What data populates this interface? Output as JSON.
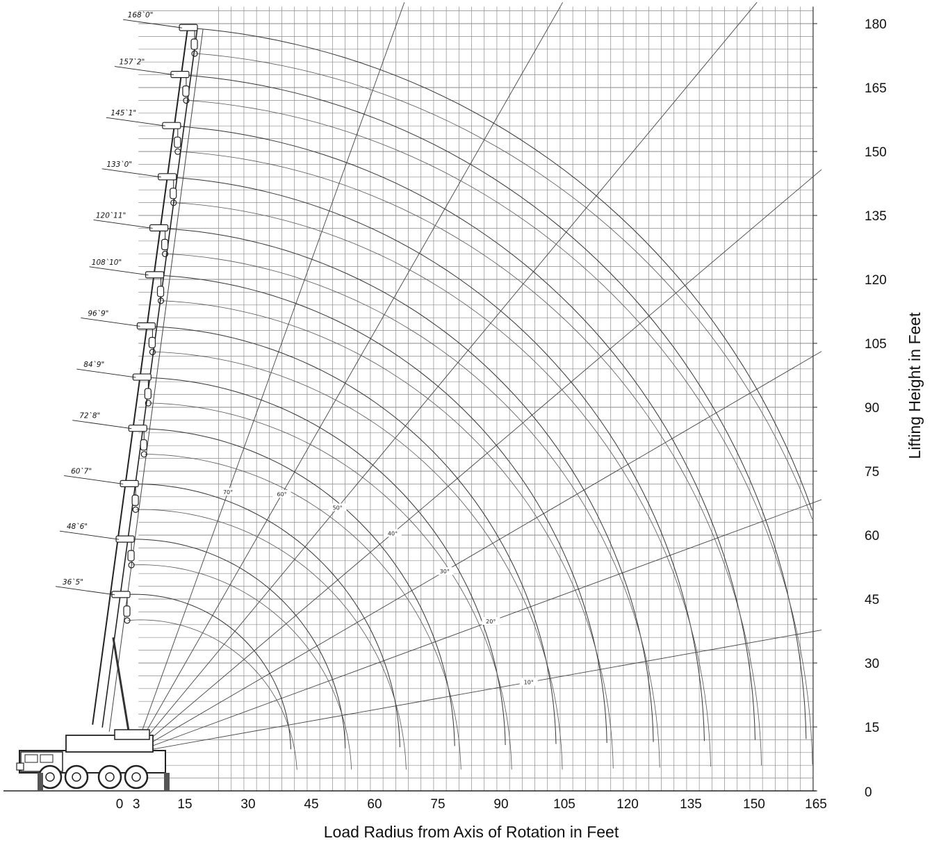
{
  "chart_data": {
    "type": "line",
    "title": "",
    "xlabel": "Load Radius from Axis of Rotation in Feet",
    "ylabel": "Lifting Height in  Feet",
    "x_ticks": [
      "0",
      "3",
      "15",
      "30",
      "45",
      "60",
      "75",
      "90",
      "105",
      "120",
      "135",
      "150",
      "165"
    ],
    "y_ticks": [
      "0",
      "15",
      "30",
      "45",
      "60",
      "75",
      "90",
      "105",
      "120",
      "135",
      "150",
      "165",
      "180"
    ],
    "xlim": [
      -28,
      166
    ],
    "ylim": [
      0,
      184
    ],
    "x_axis_position": "bottom",
    "y_axis_position": "right",
    "grid": true,
    "boom_pivot": {
      "x": 3,
      "y": 9
    },
    "boom_lengths": [
      {
        "label": "168`0\"",
        "length_ft": 168.0,
        "tip": {
          "x": 16,
          "y": 179
        }
      },
      {
        "label": "157`2\"",
        "length_ft": 157.2,
        "tip": {
          "x": 14,
          "y": 168
        }
      },
      {
        "label": "145`1\"",
        "length_ft": 145.1,
        "tip": {
          "x": 12,
          "y": 156
        }
      },
      {
        "label": "133`0\"",
        "length_ft": 133.0,
        "tip": {
          "x": 11,
          "y": 144
        }
      },
      {
        "label": "120`11\"",
        "length_ft": 120.9,
        "tip": {
          "x": 9,
          "y": 132
        }
      },
      {
        "label": "108`10\"",
        "length_ft": 108.8,
        "tip": {
          "x": 8,
          "y": 121
        }
      },
      {
        "label": "96`9\"",
        "length_ft": 96.75,
        "tip": {
          "x": 6,
          "y": 109
        }
      },
      {
        "label": "84`9\"",
        "length_ft": 84.75,
        "tip": {
          "x": 5,
          "y": 97
        }
      },
      {
        "label": "72`8\"",
        "length_ft": 72.7,
        "tip": {
          "x": 4,
          "y": 85
        }
      },
      {
        "label": "60`7\"",
        "length_ft": 60.6,
        "tip": {
          "x": 2,
          "y": 72
        }
      },
      {
        "label": "48`6\"",
        "length_ft": 48.5,
        "tip": {
          "x": 1,
          "y": 59
        }
      },
      {
        "label": "36`5\"",
        "length_ft": 36.4,
        "tip": {
          "x": 0,
          "y": 46
        }
      }
    ],
    "radius_arcs": [
      {
        "boom": "168`0\"",
        "radius_ft": [
          16,
          41,
          66,
          91,
          116,
          141,
          158
        ],
        "height_ft": [
          179,
          176,
          168,
          155,
          133,
          101,
          58
        ]
      },
      {
        "boom": "36`5\"",
        "radius_ft": [
          0,
          10,
          20,
          30
        ],
        "height_ft": [
          46,
          44,
          36,
          9
        ]
      }
    ],
    "boom_angle_lines": [
      {
        "label": "70°",
        "angle_deg": 70
      },
      {
        "label": "60°",
        "angle_deg": 60
      },
      {
        "label": "50°",
        "angle_deg": 50
      },
      {
        "label": "40°",
        "angle_deg": 40
      },
      {
        "label": "30°",
        "angle_deg": 30
      },
      {
        "label": "20°",
        "angle_deg": 20
      },
      {
        "label": "10°",
        "angle_deg": 10
      }
    ]
  }
}
